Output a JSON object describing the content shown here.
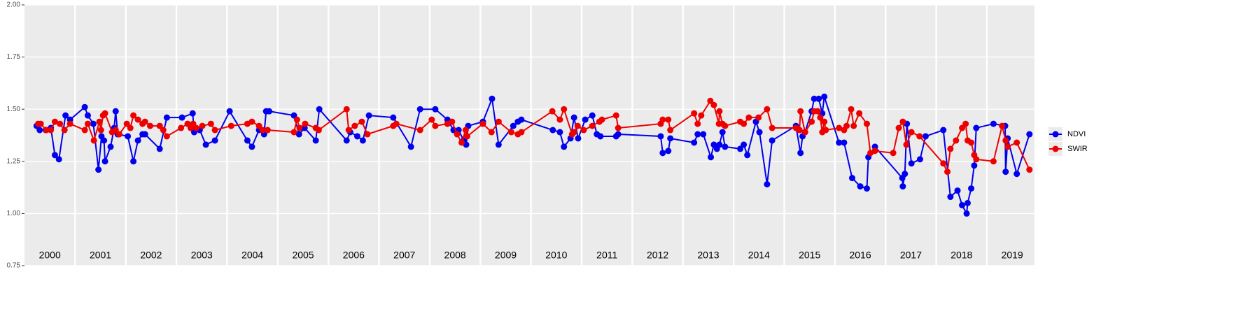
{
  "chart_data": {
    "type": "line",
    "xlim": [
      2000,
      2019.94
    ],
    "ylim": [
      0.75,
      2.0
    ],
    "yticks": [
      {
        "value": 0.75,
        "label": "0.75"
      },
      {
        "value": 1.0,
        "label": "1.00"
      },
      {
        "value": 1.25,
        "label": "1.25"
      },
      {
        "value": 1.5,
        "label": "1.50"
      },
      {
        "value": 1.75,
        "label": "1.75"
      },
      {
        "value": 2.0,
        "label": "2.00"
      }
    ],
    "xticks": [
      2001,
      2002,
      2003,
      2004,
      2005,
      2006,
      2007,
      2008,
      2009,
      2010,
      2011,
      2012,
      2013,
      2014,
      2015,
      2016,
      2017,
      2018,
      2019
    ],
    "year_labels": [
      {
        "value": 2000.5,
        "label": "2000"
      },
      {
        "value": 2001.5,
        "label": "2001"
      },
      {
        "value": 2002.5,
        "label": "2002"
      },
      {
        "value": 2003.5,
        "label": "2003"
      },
      {
        "value": 2004.5,
        "label": "2004"
      },
      {
        "value": 2005.5,
        "label": "2005"
      },
      {
        "value": 2006.5,
        "label": "2006"
      },
      {
        "value": 2007.5,
        "label": "2007"
      },
      {
        "value": 2008.5,
        "label": "2008"
      },
      {
        "value": 2009.5,
        "label": "2009"
      },
      {
        "value": 2010.5,
        "label": "2010"
      },
      {
        "value": 2011.5,
        "label": "2011"
      },
      {
        "value": 2012.5,
        "label": "2012"
      },
      {
        "value": 2013.5,
        "label": "2013"
      },
      {
        "value": 2014.5,
        "label": "2014"
      },
      {
        "value": 2015.5,
        "label": "2015"
      },
      {
        "value": 2016.5,
        "label": "2016"
      },
      {
        "value": 2017.5,
        "label": "2017"
      },
      {
        "value": 2018.5,
        "label": "2018"
      },
      {
        "value": 2019.5,
        "label": "2019"
      }
    ],
    "grid": true,
    "legend": "right",
    "series": [
      {
        "name": "NDVI",
        "color": "#0000ee",
        "x": [
          2000.24,
          2000.3,
          2000.42,
          2000.52,
          2000.6,
          2000.68,
          2000.81,
          2000.9,
          2001.19,
          2001.25,
          2001.36,
          2001.46,
          2001.52,
          2001.57,
          2001.59,
          2001.7,
          2001.77,
          2001.8,
          2001.84,
          2002.04,
          2002.15,
          2002.24,
          2002.33,
          2002.38,
          2002.67,
          2002.81,
          2003.11,
          2003.32,
          2003.35,
          2003.46,
          2003.58,
          2003.76,
          2004.05,
          2004.4,
          2004.49,
          2004.63,
          2004.73,
          2004.77,
          2004.83,
          2005.32,
          2005.42,
          2005.53,
          2005.75,
          2005.82,
          2006.36,
          2006.43,
          2006.57,
          2006.68,
          2006.8,
          2007.28,
          2007.63,
          2007.81,
          2008.11,
          2008.35,
          2008.47,
          2008.57,
          2008.67,
          2008.72,
          2008.76,
          2009.05,
          2009.23,
          2009.36,
          2009.65,
          2009.74,
          2009.81,
          2010.43,
          2010.57,
          2010.65,
          2010.78,
          2010.85,
          2010.93,
          2011.07,
          2011.21,
          2011.3,
          2011.37,
          2011.68,
          2011.72,
          2012.56,
          2012.6,
          2012.71,
          2012.75,
          2013.22,
          2013.29,
          2013.4,
          2013.55,
          2013.61,
          2013.67,
          2013.72,
          2013.78,
          2013.83,
          2014.13,
          2014.2,
          2014.27,
          2014.44,
          2014.51,
          2014.66,
          2014.76,
          2015.23,
          2015.32,
          2015.36,
          2015.41,
          2015.54,
          2015.59,
          2015.68,
          2015.75,
          2015.79,
          2016.08,
          2016.18,
          2016.34,
          2016.5,
          2016.63,
          2016.66,
          2016.79,
          2017.33,
          2017.34,
          2017.38,
          2017.42,
          2017.51,
          2017.68,
          2017.79,
          2018.14,
          2018.28,
          2018.42,
          2018.51,
          2018.6,
          2018.62,
          2018.69,
          2018.75,
          2018.79,
          2019.13,
          2019.36,
          2019.37,
          2019.41,
          2019.59,
          2019.84
        ],
        "values": [
          1.42,
          1.4,
          1.4,
          1.41,
          1.28,
          1.26,
          1.47,
          1.45,
          1.51,
          1.47,
          1.43,
          1.21,
          1.37,
          1.35,
          1.25,
          1.32,
          1.41,
          1.49,
          1.38,
          1.37,
          1.25,
          1.35,
          1.38,
          1.38,
          1.31,
          1.46,
          1.46,
          1.48,
          1.39,
          1.4,
          1.33,
          1.35,
          1.49,
          1.35,
          1.32,
          1.4,
          1.38,
          1.49,
          1.49,
          1.47,
          1.38,
          1.41,
          1.35,
          1.5,
          1.35,
          1.39,
          1.37,
          1.35,
          1.47,
          1.46,
          1.32,
          1.5,
          1.5,
          1.45,
          1.4,
          1.4,
          1.35,
          1.33,
          1.42,
          1.44,
          1.55,
          1.33,
          1.42,
          1.44,
          1.45,
          1.4,
          1.39,
          1.32,
          1.36,
          1.46,
          1.36,
          1.45,
          1.47,
          1.38,
          1.37,
          1.37,
          1.38,
          1.37,
          1.29,
          1.3,
          1.36,
          1.34,
          1.38,
          1.38,
          1.27,
          1.33,
          1.31,
          1.33,
          1.39,
          1.32,
          1.31,
          1.33,
          1.28,
          1.44,
          1.39,
          1.14,
          1.35,
          1.42,
          1.29,
          1.37,
          1.39,
          1.49,
          1.55,
          1.55,
          1.48,
          1.56,
          1.34,
          1.34,
          1.17,
          1.13,
          1.12,
          1.27,
          1.32,
          1.17,
          1.13,
          1.19,
          1.43,
          1.24,
          1.26,
          1.37,
          1.4,
          1.08,
          1.11,
          1.04,
          1.0,
          1.05,
          1.12,
          1.23,
          1.41,
          1.43,
          1.42,
          1.2,
          1.36,
          1.19,
          1.38
        ]
      },
      {
        "name": "SWIR",
        "color": "#ee0000",
        "x": [
          2000.27,
          2000.32,
          2000.43,
          2000.52,
          2000.6,
          2000.7,
          2000.79,
          2000.9,
          2001.19,
          2001.25,
          2001.37,
          2001.48,
          2001.51,
          2001.55,
          2001.59,
          2001.73,
          2001.8,
          2001.87,
          2002.02,
          2002.09,
          2002.15,
          2002.24,
          2002.33,
          2002.38,
          2002.48,
          2002.67,
          2002.74,
          2002.81,
          2003.09,
          2003.22,
          2003.28,
          2003.33,
          2003.39,
          2003.51,
          2003.68,
          2003.76,
          2004.08,
          2004.4,
          2004.49,
          2004.63,
          2004.7,
          2004.8,
          2005.32,
          2005.38,
          2005.43,
          2005.54,
          2005.75,
          2005.81,
          2006.36,
          2006.4,
          2006.52,
          2006.66,
          2006.77,
          2007.28,
          2007.34,
          2007.81,
          2008.04,
          2008.11,
          2008.35,
          2008.44,
          2008.54,
          2008.63,
          2008.71,
          2008.74,
          2009.05,
          2009.22,
          2009.36,
          2009.61,
          2009.74,
          2009.81,
          2010.42,
          2010.57,
          2010.65,
          2010.81,
          2010.85,
          2010.92,
          2011.04,
          2011.21,
          2011.35,
          2011.4,
          2011.68,
          2011.72,
          2012.56,
          2012.6,
          2012.71,
          2012.75,
          2013.22,
          2013.29,
          2013.36,
          2013.54,
          2013.61,
          2013.71,
          2013.72,
          2013.78,
          2013.83,
          2014.13,
          2014.2,
          2014.3,
          2014.49,
          2014.66,
          2014.76,
          2015.23,
          2015.3,
          2015.32,
          2015.41,
          2015.54,
          2015.59,
          2015.66,
          2015.71,
          2015.75,
          2015.79,
          2015.82,
          2016.08,
          2016.18,
          2016.23,
          2016.32,
          2016.37,
          2016.48,
          2016.63,
          2016.7,
          2016.79,
          2017.15,
          2017.26,
          2017.34,
          2017.41,
          2017.51,
          2017.67,
          2018.14,
          2018.22,
          2018.28,
          2018.39,
          2018.51,
          2018.58,
          2018.62,
          2018.69,
          2018.75,
          2018.79,
          2019.13,
          2019.3,
          2019.37,
          2019.41,
          2019.59,
          2019.84
        ],
        "values": [
          1.43,
          1.43,
          1.4,
          1.4,
          1.44,
          1.43,
          1.4,
          1.43,
          1.4,
          1.43,
          1.35,
          1.44,
          1.4,
          1.47,
          1.48,
          1.39,
          1.4,
          1.38,
          1.43,
          1.41,
          1.47,
          1.45,
          1.43,
          1.44,
          1.42,
          1.42,
          1.4,
          1.37,
          1.41,
          1.43,
          1.41,
          1.43,
          1.41,
          1.42,
          1.43,
          1.4,
          1.42,
          1.43,
          1.44,
          1.42,
          1.4,
          1.4,
          1.39,
          1.45,
          1.41,
          1.43,
          1.41,
          1.4,
          1.5,
          1.4,
          1.42,
          1.44,
          1.38,
          1.42,
          1.43,
          1.4,
          1.45,
          1.42,
          1.43,
          1.44,
          1.38,
          1.34,
          1.4,
          1.37,
          1.43,
          1.39,
          1.44,
          1.39,
          1.38,
          1.39,
          1.49,
          1.45,
          1.5,
          1.38,
          1.39,
          1.42,
          1.4,
          1.42,
          1.44,
          1.45,
          1.47,
          1.41,
          1.43,
          1.45,
          1.45,
          1.4,
          1.48,
          1.43,
          1.47,
          1.54,
          1.52,
          1.43,
          1.49,
          1.43,
          1.42,
          1.44,
          1.43,
          1.46,
          1.46,
          1.5,
          1.41,
          1.41,
          1.4,
          1.49,
          1.39,
          1.44,
          1.49,
          1.49,
          1.46,
          1.39,
          1.44,
          1.4,
          1.41,
          1.4,
          1.42,
          1.5,
          1.42,
          1.48,
          1.43,
          1.29,
          1.3,
          1.29,
          1.41,
          1.44,
          1.33,
          1.39,
          1.37,
          1.24,
          1.2,
          1.31,
          1.35,
          1.41,
          1.43,
          1.35,
          1.34,
          1.28,
          1.26,
          1.25,
          1.42,
          1.35,
          1.32,
          1.34,
          1.21
        ]
      }
    ]
  }
}
